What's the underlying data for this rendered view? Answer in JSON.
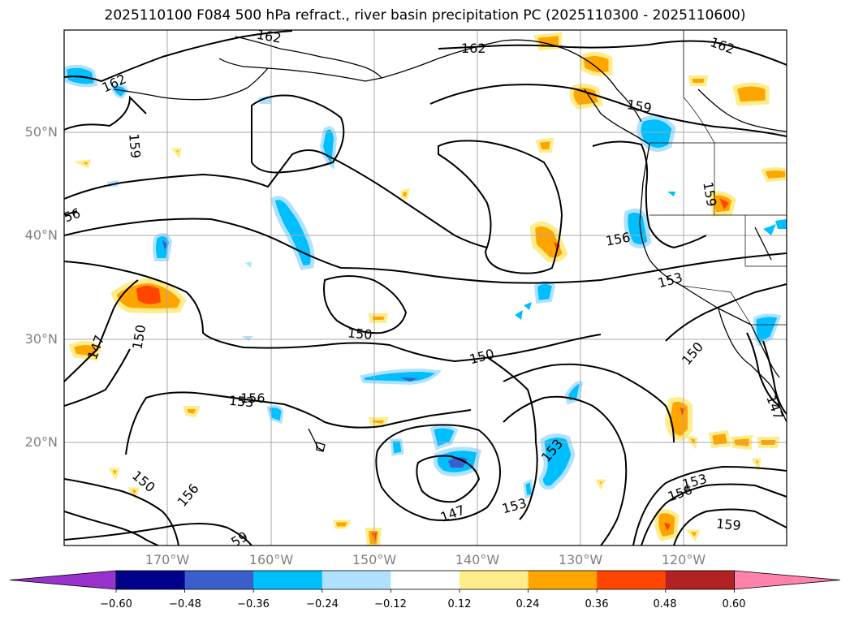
{
  "title": "2025110100 F084 500 hPa refract., river basin precipitation PC (2025110300 - 2025110600)",
  "lat_labels": [
    "50°N",
    "40°N",
    "30°N",
    "20°N"
  ],
  "lon_labels": [
    "170°W",
    "160°W",
    "150°W",
    "140°W",
    "130°W",
    "120°W"
  ],
  "contour_labels": [
    {
      "text": "162"
    },
    {
      "text": "162"
    },
    {
      "text": "162"
    },
    {
      "text": "162"
    },
    {
      "text": "159"
    },
    {
      "text": "159"
    },
    {
      "text": "159"
    },
    {
      "text": "159"
    },
    {
      "text": "156"
    },
    {
      "text": "156"
    },
    {
      "text": "156"
    },
    {
      "text": "156"
    },
    {
      "text": "56"
    },
    {
      "text": "59"
    },
    {
      "text": "153"
    },
    {
      "text": "153"
    },
    {
      "text": "153"
    },
    {
      "text": "153"
    },
    {
      "text": "153"
    },
    {
      "text": "150"
    },
    {
      "text": "150"
    },
    {
      "text": "150"
    },
    {
      "text": "150"
    },
    {
      "text": "150"
    },
    {
      "text": "147"
    },
    {
      "text": "147"
    },
    {
      "text": "147"
    }
  ],
  "colorbar": {
    "colors": [
      "#9932cc",
      "#00008b",
      "#3a5fcd",
      "#00bfff",
      "#b0e2ff",
      "#ffffff",
      "#ffec8b",
      "#ffa500",
      "#ff4500",
      "#b22222",
      "#ff82ab"
    ],
    "ticks": [
      "−0.60",
      "−0.48",
      "−0.36",
      "−0.24",
      "−0.12",
      "0.12",
      "0.24",
      "0.36",
      "0.48",
      "0.60"
    ]
  }
}
